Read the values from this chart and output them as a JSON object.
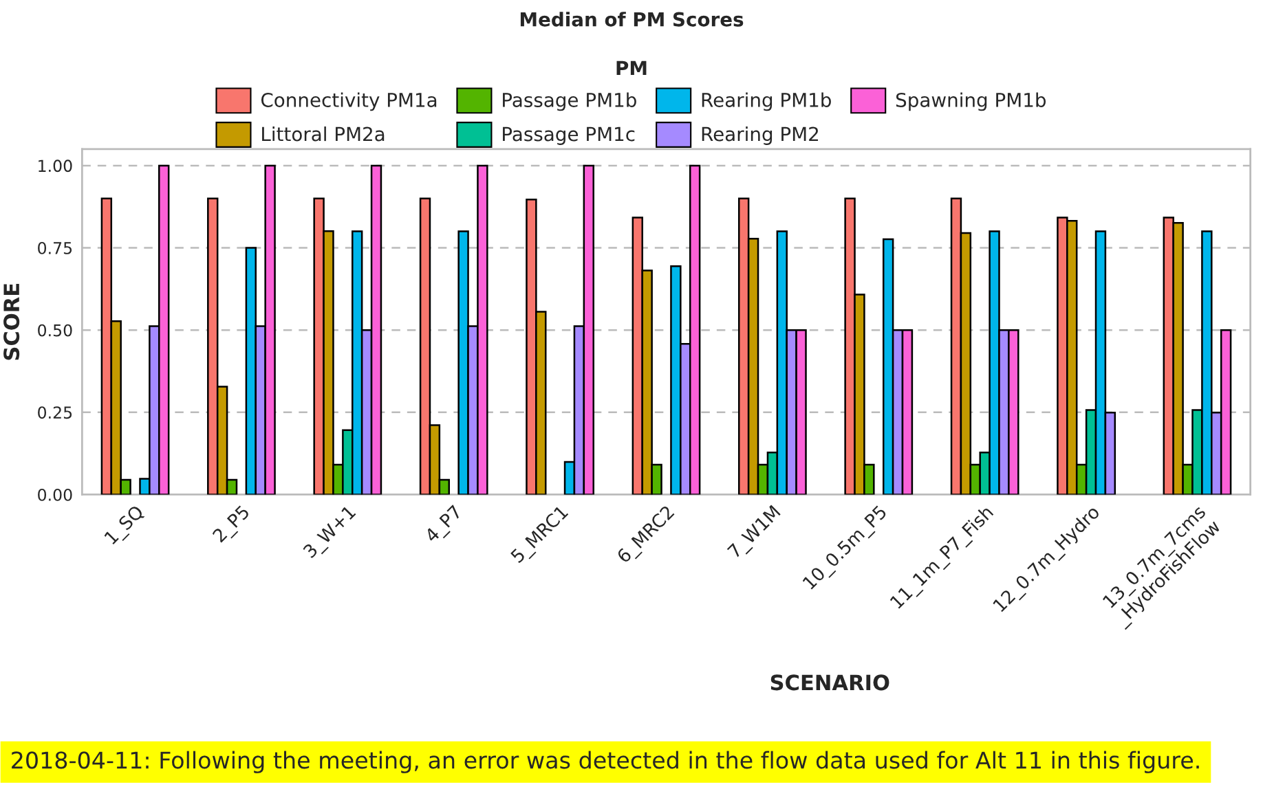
{
  "chart_data": {
    "type": "bar",
    "title": "Median of PM Scores",
    "xlabel": "SCENARIO",
    "ylabel": "SCORE",
    "legend_title": "PM",
    "categories": [
      "1_SQ",
      "2_P5",
      "3_W+1",
      "4_P7",
      "5_MRC1",
      "6_MRC2",
      "7_W1M",
      "10_0.5m_P5",
      "11_1m_P7_Fish",
      "12_0.7m_Hydro",
      "13_0.7m_7cms\n_HydroFishFlow"
    ],
    "series": [
      {
        "name": "Connectivity PM1a",
        "color": "#f8766d",
        "values": [
          0.9,
          0.9,
          0.9,
          0.9,
          0.897,
          0.842,
          0.9,
          0.9,
          0.9,
          0.842,
          0.842
        ]
      },
      {
        "name": "Littoral PM2a",
        "color": "#c49a00",
        "values": [
          0.527,
          0.328,
          0.801,
          0.211,
          0.556,
          0.681,
          0.778,
          0.608,
          0.795,
          0.832,
          0.826
        ]
      },
      {
        "name": "Passage PM1b",
        "color": "#53b400",
        "values": [
          0.045,
          0.045,
          0.091,
          0.045,
          null,
          0.091,
          0.091,
          0.091,
          0.091,
          0.091,
          0.091
        ]
      },
      {
        "name": "Passage PM1c",
        "color": "#00c094",
        "values": [
          null,
          null,
          0.196,
          null,
          null,
          null,
          0.128,
          null,
          0.128,
          0.257,
          0.257
        ]
      },
      {
        "name": "Rearing PM1b",
        "color": "#00b6eb",
        "values": [
          0.048,
          0.75,
          0.8,
          0.8,
          0.099,
          0.694,
          0.8,
          0.776,
          0.8,
          0.8,
          0.8
        ]
      },
      {
        "name": "Rearing PM2",
        "color": "#a58aff",
        "values": [
          0.512,
          0.512,
          0.5,
          0.512,
          0.512,
          0.458,
          0.5,
          0.5,
          0.5,
          0.249,
          0.249
        ]
      },
      {
        "name": "Spawning PM1b",
        "color": "#fb61d7",
        "values": [
          1.0,
          1.0,
          1.0,
          1.0,
          1.0,
          1.0,
          0.5,
          0.5,
          0.5,
          null,
          0.5
        ]
      }
    ],
    "ylim": [
      0,
      1.05
    ],
    "yticks": [
      {
        "value": 0,
        "label": "0.00"
      },
      {
        "value": 0.25,
        "label": "0.25"
      },
      {
        "value": 0.5,
        "label": "0.50"
      },
      {
        "value": 0.75,
        "label": "0.75"
      },
      {
        "value": 1.0,
        "label": "1.00"
      }
    ],
    "grid": "y",
    "legend": "top",
    "annotations": [
      "2018-04-11: Following the meeting, an error was detected in the flow data used for Alt 11 in this figure."
    ]
  }
}
